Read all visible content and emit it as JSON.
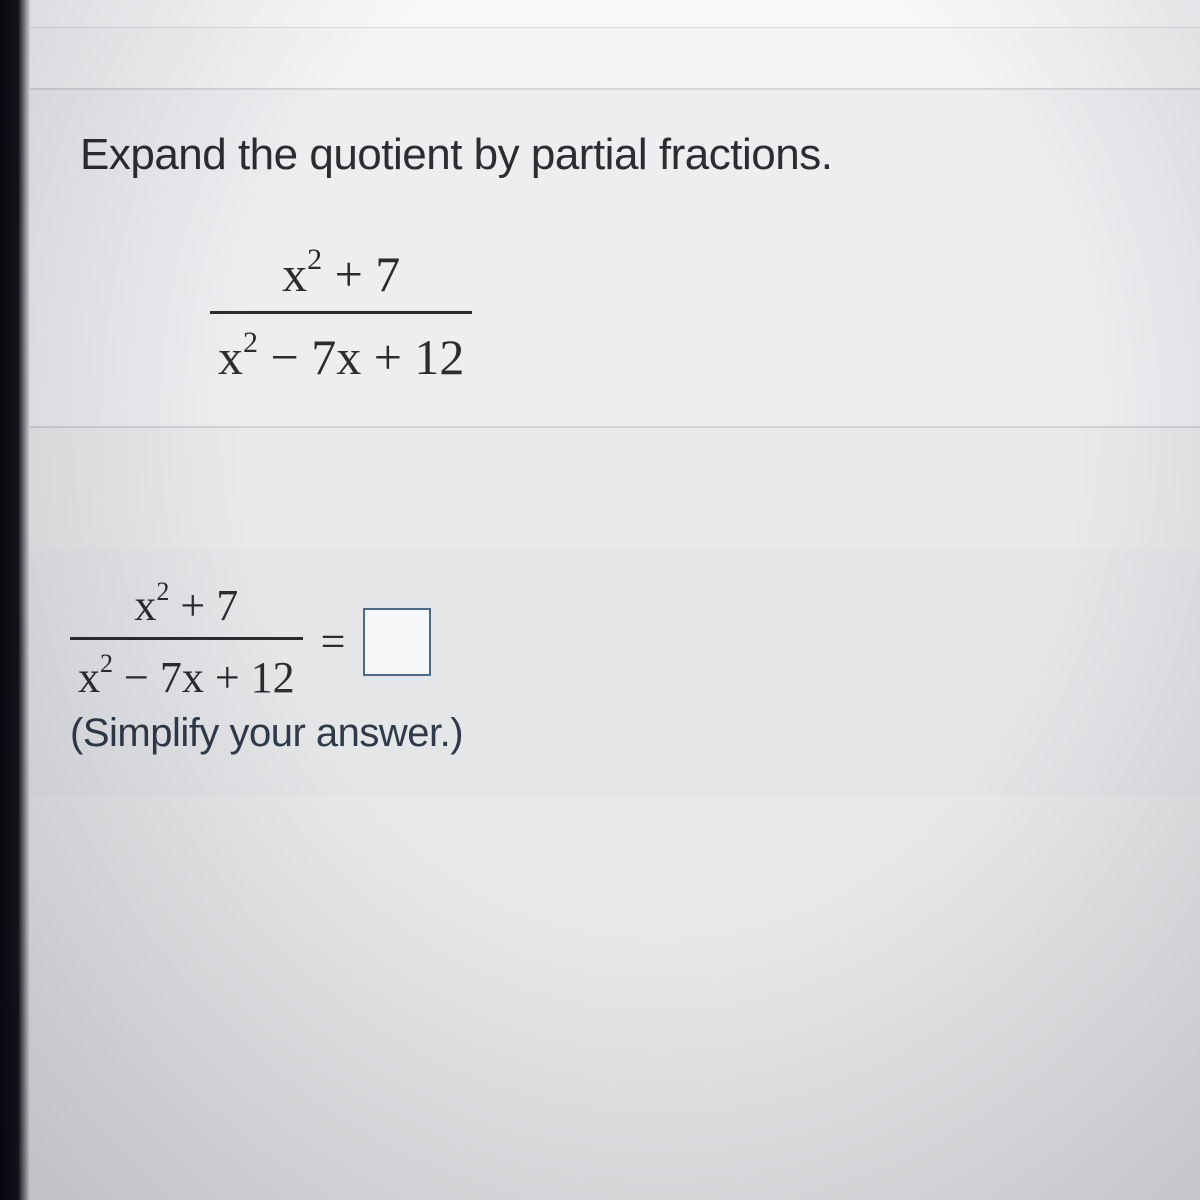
{
  "question": {
    "prompt": "Expand the quotient by partial fractions.",
    "fraction": {
      "numerator_prefix": "x",
      "numerator_rest": " + 7",
      "denominator_prefix": "x",
      "denominator_rest": " − 7x + 12"
    }
  },
  "answer": {
    "fraction": {
      "numerator_prefix": "x",
      "numerator_rest": " + 7",
      "denominator_prefix": "x",
      "denominator_rest": " − 7x + 12"
    },
    "equals": "=",
    "hint": "(Simplify your answer.)"
  },
  "style": {
    "exponent": "2",
    "input_border_color": "#4a6b8a",
    "text_color": "#2a2c2e",
    "hint_color": "#2f3a4a"
  }
}
